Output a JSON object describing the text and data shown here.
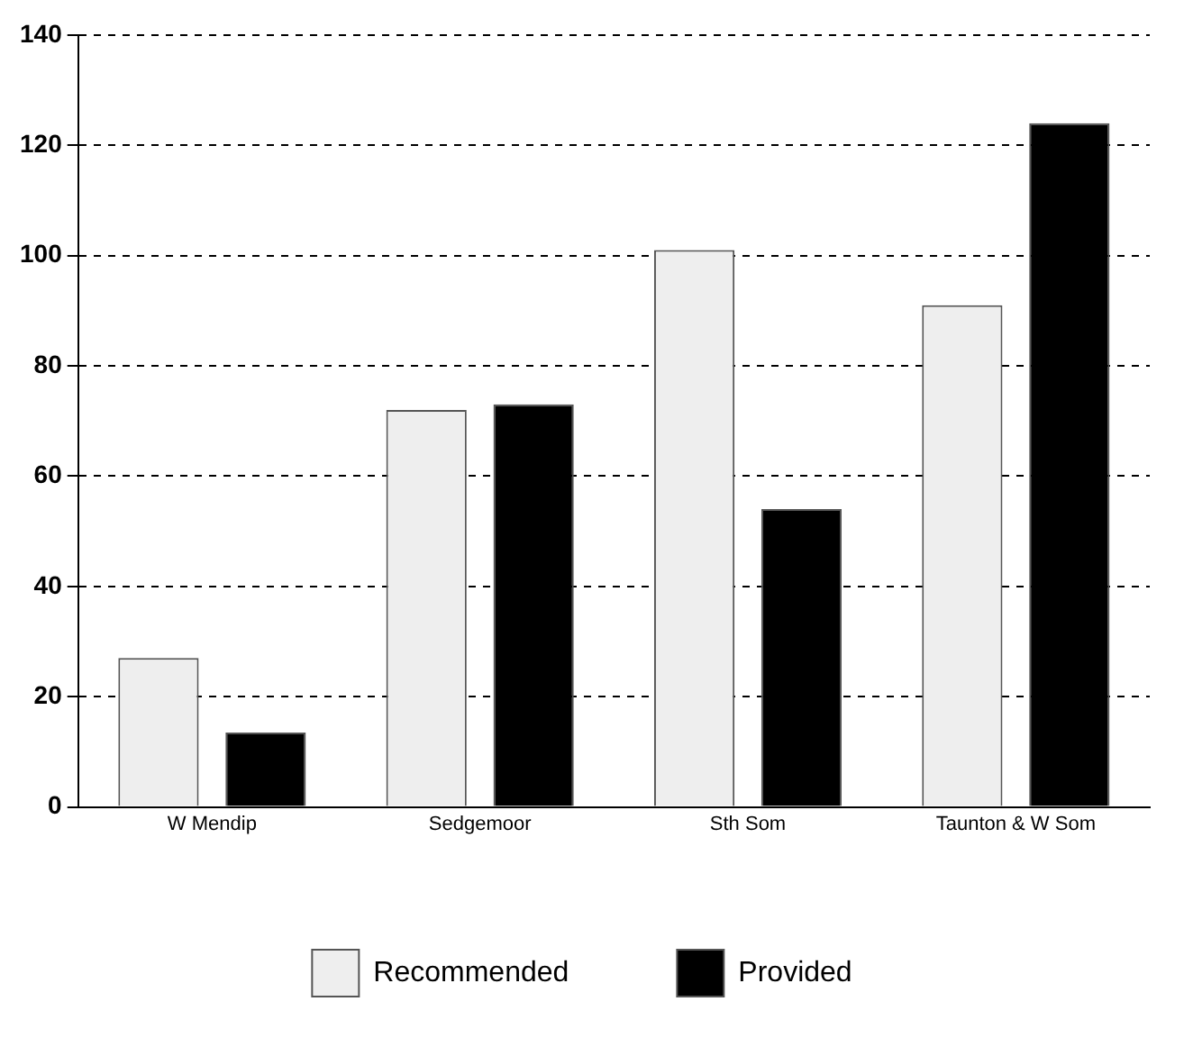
{
  "chart_data": {
    "type": "bar",
    "categories": [
      "W Mendip",
      "Sedgemoor",
      "Sth Som",
      "Taunton & W Som"
    ],
    "series": [
      {
        "name": "Recommended",
        "color": "#eeeeee",
        "values": [
          27,
          72,
          101,
          91
        ]
      },
      {
        "name": "Provided",
        "color": "#000000",
        "values": [
          13.5,
          73,
          54,
          124
        ]
      }
    ],
    "ylim": [
      0,
      140
    ],
    "yticks": [
      0,
      20,
      40,
      60,
      80,
      100,
      120,
      140
    ],
    "grid": "y",
    "legend": "bottom"
  }
}
